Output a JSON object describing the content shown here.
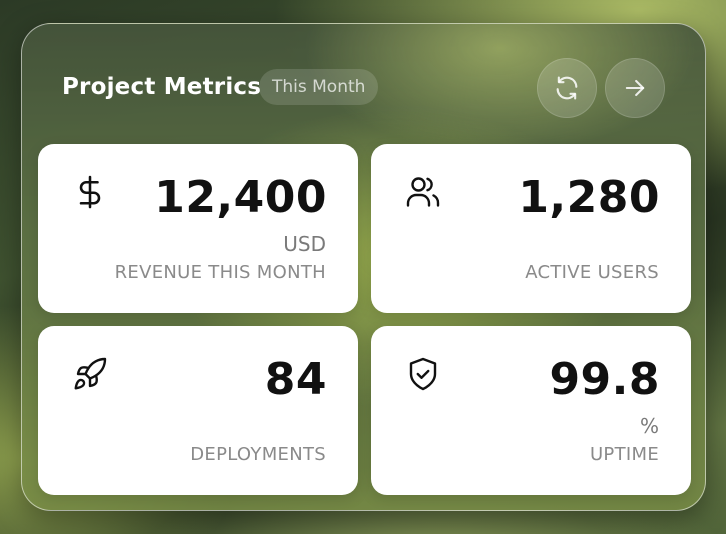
{
  "header": {
    "title": "Project Metrics",
    "period_badge": "This Month",
    "refresh_icon": "refresh-icon",
    "next_icon": "arrow-right-icon"
  },
  "metrics": [
    {
      "icon": "dollar-icon",
      "value": "12,400",
      "unit": "USD",
      "label": "REVENUE THIS MONTH"
    },
    {
      "icon": "users-icon",
      "value": "1,280",
      "unit": "",
      "label": "ACTIVE USERS"
    },
    {
      "icon": "rocket-icon",
      "value": "84",
      "unit": "",
      "label": "DEPLOYMENTS"
    },
    {
      "icon": "shield-check-icon",
      "value": "99.8",
      "unit": "%",
      "label": "UPTIME"
    }
  ]
}
